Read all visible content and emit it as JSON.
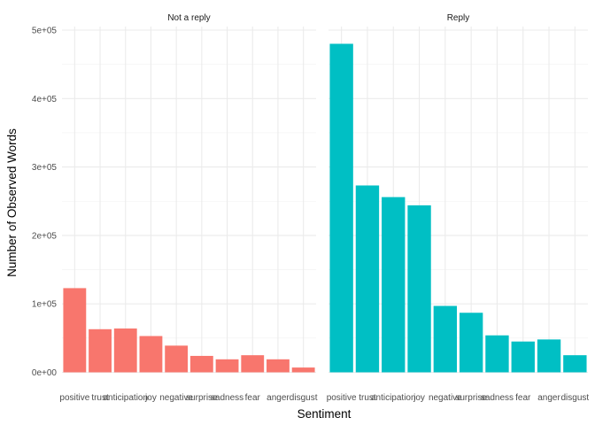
{
  "chart_data": {
    "type": "bar",
    "xlabel": "Sentiment",
    "ylabel": "Number of Observed Words",
    "ylim": [
      0,
      500000
    ],
    "y_ticks": [
      0,
      100000,
      200000,
      300000,
      400000,
      500000
    ],
    "y_tick_labels": [
      "0e+00",
      "1e+05",
      "2e+05",
      "3e+05",
      "4e+05",
      "5e+05"
    ],
    "categories": [
      "positive",
      "trust",
      "anticipation",
      "joy",
      "negative",
      "surprise",
      "sadness",
      "fear",
      "anger",
      "disgust"
    ],
    "grid": true,
    "legend": "none",
    "panels": [
      {
        "name": "Not a reply",
        "color": "#F8766D",
        "values": [
          123000,
          63000,
          64000,
          53000,
          39000,
          24000,
          19000,
          25000,
          19000,
          7000
        ]
      },
      {
        "name": "Reply",
        "color": "#00BFC4",
        "values": [
          480000,
          273000,
          256000,
          244000,
          97000,
          87000,
          54000,
          45000,
          48000,
          25000
        ]
      }
    ]
  }
}
